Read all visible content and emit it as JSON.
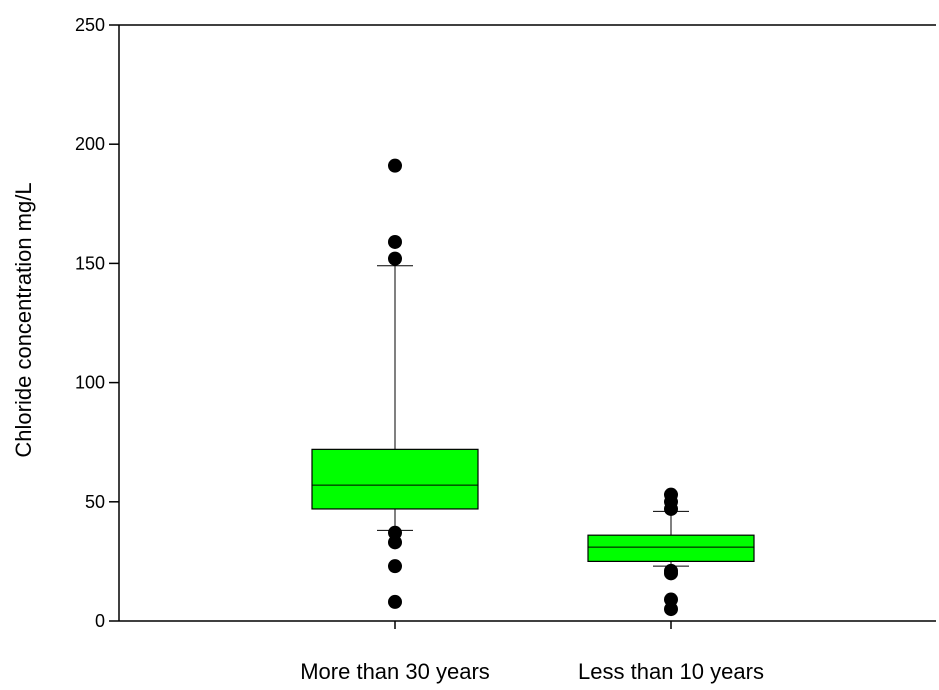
{
  "chart_data": {
    "type": "box",
    "title": "",
    "xlabel": "",
    "ylabel": "Chloride concentration mg/L",
    "ylim": [
      0,
      250
    ],
    "yticks": [
      0,
      50,
      100,
      150,
      200,
      250
    ],
    "grid": false,
    "legend": "none",
    "box_color": "#00ff00",
    "categories": [
      "More than 30 years",
      "Less than 10 years"
    ],
    "boxes": [
      {
        "category": "More than 30 years",
        "whisker_low": 38,
        "q1": 47,
        "median": 57,
        "q3": 72,
        "whisker_high": 149,
        "outliers": [
          191,
          159,
          152,
          37,
          33,
          23,
          8
        ]
      },
      {
        "category": "Less than 10 years",
        "whisker_low": 23,
        "q1": 25,
        "median": 31,
        "q3": 36,
        "whisker_high": 46,
        "outliers": [
          53,
          50,
          47,
          21,
          20,
          9,
          5
        ]
      }
    ]
  }
}
